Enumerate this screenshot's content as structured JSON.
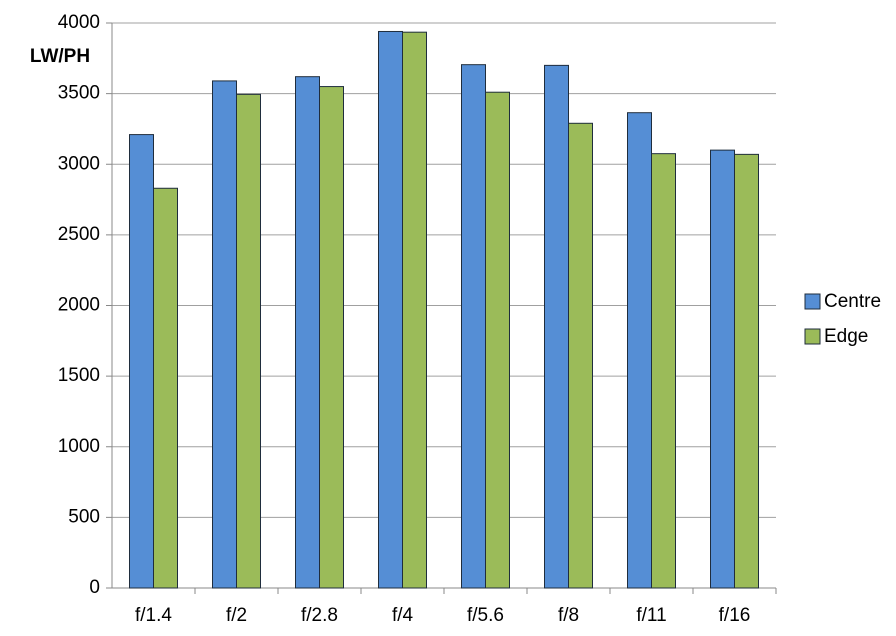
{
  "chart_data": {
    "type": "bar",
    "y_label": "LW/PH",
    "categories": [
      "f/1.4",
      "f/2",
      "f/2.8",
      "f/4",
      "f/5.6",
      "f/8",
      "f/11",
      "f/16"
    ],
    "series": [
      {
        "name": "Centre",
        "color": "#558ed5",
        "values": [
          3210,
          3590,
          3620,
          3940,
          3705,
          3700,
          3365,
          3100
        ]
      },
      {
        "name": "Edge",
        "color": "#9bbb59",
        "values": [
          2830,
          3495,
          3550,
          3935,
          3510,
          3290,
          3075,
          3070
        ]
      }
    ],
    "ylim": [
      0,
      4000
    ],
    "yticks": [
      0,
      500,
      1000,
      1500,
      2000,
      2500,
      3000,
      3500,
      4000
    ],
    "grid": true,
    "legend": "right"
  }
}
